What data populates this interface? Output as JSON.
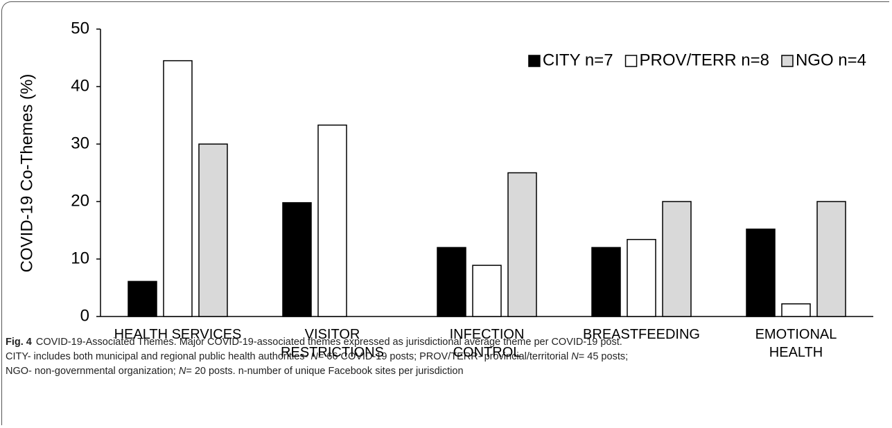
{
  "chart_data": {
    "type": "bar",
    "y_label": "COVID-19 Co-Themes (%)",
    "categories": [
      "HEALTH SERVICES",
      "VISITOR RESTRICTIONS",
      "INFECTION CONTROL",
      "BREASTFEEDING",
      "EMOTIONAL HEALTH"
    ],
    "series": [
      {
        "name": "CITY n=7",
        "color": "#000000",
        "values": [
          6.1,
          19.8,
          12.0,
          12.0,
          15.2
        ]
      },
      {
        "name": "PROV/TERR n=8",
        "color": "#ffffff",
        "values": [
          44.5,
          33.3,
          8.9,
          13.4,
          2.2
        ]
      },
      {
        "name": "NGO n=4",
        "color": "#d9d9d9",
        "values": [
          30.0,
          0,
          25.0,
          20.0,
          20.0
        ]
      }
    ],
    "ylim": [
      0,
      50
    ],
    "yticks": [
      0,
      10,
      20,
      30,
      40,
      50
    ],
    "grid": false,
    "legend": "upper right"
  },
  "caption": {
    "label": "Fig. 4",
    "parts": [
      "COVID-19-Associated Themes. Major COVID-19-associated themes expressed as jurisdictional average theme per COVID-19 post.",
      "CITY- includes both municipal and regional public health authorities- ",
      "N",
      "= 66 COVID-19 posts; PROV/TERR- provincial/territorial ",
      "N",
      "= 45 posts;",
      "NGO- non-governmental organization; ",
      "N",
      "= 20 posts. n-number of unique Facebook sites per jurisdiction"
    ]
  }
}
